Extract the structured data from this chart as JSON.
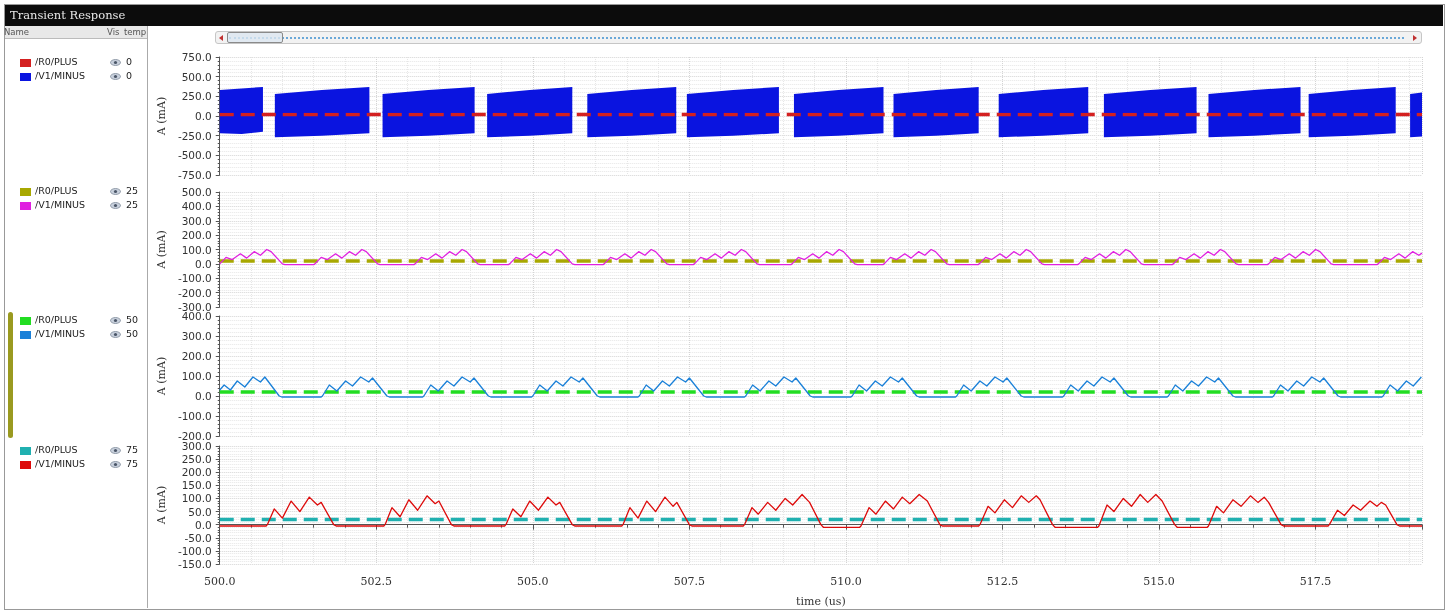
{
  "chart_data": [
    {
      "type": "line",
      "title": "Transient Response",
      "ylabel": "A (mA)",
      "legend": "left",
      "grid": true,
      "tick_labels": "y",
      "annotations": [
        "Name",
        "Vis",
        "temp",
        "0",
        "0"
      ],
      "xlim": [
        500,
        519.2
      ],
      "xticks": [
        {
          "value": 500,
          "label": null
        },
        {
          "value": 502.5,
          "label": null
        },
        {
          "value": 505,
          "label": null
        },
        {
          "value": 507.5,
          "label": null
        },
        {
          "value": 510,
          "label": null
        },
        {
          "value": 512.5,
          "label": null
        },
        {
          "value": 515,
          "label": null
        },
        {
          "value": 517.5,
          "label": null
        }
      ],
      "ylim": [
        -750,
        750
      ],
      "yticks": [
        {
          "value": -750,
          "label": "-750.0"
        },
        {
          "value": -500,
          "label": "-500.0"
        },
        {
          "value": -250,
          "label": "-250.0"
        },
        {
          "value": 0,
          "label": "0.0"
        },
        {
          "value": 250,
          "label": "250.0"
        },
        {
          "value": 500,
          "label": "500.0"
        },
        {
          "value": 750,
          "label": "750.0"
        }
      ],
      "series": [
        {
          "name": "/R0/PLUS",
          "color": "#d42020",
          "line_style": "dashed",
          "x": [
            500,
            519.2
          ],
          "values": [
            20,
            20
          ]
        },
        {
          "name": "/V1/MINUS",
          "color": "#0a14e0",
          "x": [
            500,
            500.35,
            500.69,
            500.78,
            500.88,
            501.63,
            502.39,
            502.5,
            502.6,
            503.33,
            504.07,
            504.17,
            504.27,
            504.95,
            505.63,
            505.75,
            505.87,
            506.58,
            507.29,
            507.37,
            507.46,
            508.2,
            508.93,
            509.05,
            509.17,
            509.88,
            510.6,
            510.68,
            510.76,
            511.44,
            512.12,
            512.28,
            512.44,
            513.15,
            513.87,
            514,
            514.12,
            514.86,
            515.6,
            515.7,
            515.79,
            516.52,
            517.26,
            517.33,
            517.39,
            518.08,
            518.78,
            518.9,
            519.01,
            519.2
          ],
          "values": [
            50,
            50,
            50,
            null,
            50,
            50,
            50,
            null,
            50,
            50,
            50,
            null,
            50,
            50,
            50,
            null,
            50,
            50,
            50,
            null,
            50,
            50,
            50,
            null,
            50,
            50,
            50,
            null,
            50,
            50,
            50,
            null,
            50,
            50,
            50,
            null,
            50,
            50,
            50,
            null,
            50,
            50,
            50,
            null,
            50,
            50,
            50,
            null,
            50,
            50
          ],
          "upper": [
            330,
            350,
            370,
            null,
            280,
            330,
            370,
            null,
            280,
            330,
            370,
            null,
            280,
            330,
            370,
            null,
            280,
            330,
            370,
            null,
            280,
            330,
            370,
            null,
            280,
            330,
            370,
            null,
            280,
            330,
            370,
            null,
            280,
            330,
            370,
            null,
            280,
            330,
            370,
            null,
            280,
            330,
            370,
            null,
            280,
            330,
            370,
            null,
            280,
            300
          ],
          "lower": [
            -220,
            -230,
            -200,
            null,
            -270,
            -250,
            -220,
            null,
            -270,
            -250,
            -220,
            null,
            -270,
            -250,
            -220,
            null,
            -270,
            -250,
            -220,
            null,
            -270,
            -250,
            -220,
            null,
            -270,
            -250,
            -220,
            null,
            -270,
            -250,
            -220,
            null,
            -270,
            -250,
            -220,
            null,
            -270,
            -250,
            -220,
            null,
            -270,
            -250,
            -220,
            null,
            -270,
            -250,
            -220,
            null,
            -270,
            -260
          ]
        }
      ]
    },
    {
      "type": "line",
      "ylabel": "A (mA)",
      "legend": "left",
      "grid": true,
      "tick_labels": "y",
      "annotations": [
        "25",
        "25"
      ],
      "xlim": [
        500,
        519.2
      ],
      "xticks": [
        {
          "value": 500,
          "label": null
        },
        {
          "value": 502.5,
          "label": null
        },
        {
          "value": 505,
          "label": null
        },
        {
          "value": 507.5,
          "label": null
        },
        {
          "value": 510,
          "label": null
        },
        {
          "value": 512.5,
          "label": null
        },
        {
          "value": 515,
          "label": null
        },
        {
          "value": 517.5,
          "label": null
        }
      ],
      "ylim": [
        -300,
        500
      ],
      "yticks": [
        {
          "value": -300,
          "label": "-300.0"
        },
        {
          "value": -200,
          "label": "-200.0"
        },
        {
          "value": -100,
          "label": "-100.0"
        },
        {
          "value": 0,
          "label": "0.0"
        },
        {
          "value": 100,
          "label": "100.0"
        },
        {
          "value": 200,
          "label": "200.0"
        },
        {
          "value": 300,
          "label": "300.0"
        },
        {
          "value": 400,
          "label": "400.0"
        },
        {
          "value": 500,
          "label": "500.0"
        }
      ],
      "series": [
        {
          "name": "/R0/PLUS",
          "color": "#a8a800",
          "line_style": "dashed",
          "x": [
            500,
            519.2
          ],
          "values": [
            20,
            20
          ]
        },
        {
          "name": "/V1/MINUS",
          "color": "#e020e0",
          "x": [
            500,
            500.1,
            500.2,
            500.33,
            500.43,
            500.55,
            500.65,
            500.75,
            500.82,
            501,
            501.04,
            501.5,
            501.52,
            501.62,
            501.72,
            501.85,
            501.95,
            502.07,
            502.17,
            502.27,
            502.34,
            502.52,
            502.56,
            503.1,
            503.12,
            503.22,
            503.32,
            503.45,
            503.55,
            503.67,
            503.77,
            503.87,
            503.94,
            504.12,
            504.16,
            504.61,
            504.63,
            504.73,
            504.83,
            504.96,
            505.06,
            505.18,
            505.28,
            505.38,
            505.45,
            505.63,
            505.67,
            506.12,
            506.14,
            506.24,
            506.34,
            506.47,
            506.57,
            506.69,
            506.79,
            506.89,
            506.96,
            507.14,
            507.18,
            507.56,
            507.58,
            507.68,
            507.78,
            507.91,
            508.01,
            508.13,
            508.23,
            508.33,
            508.4,
            508.58,
            508.62,
            509.12,
            509.14,
            509.24,
            509.34,
            509.47,
            509.57,
            509.69,
            509.79,
            509.89,
            509.96,
            510.14,
            510.18,
            510.59,
            510.61,
            510.71,
            510.81,
            510.94,
            511.04,
            511.16,
            511.26,
            511.36,
            511.43,
            511.61,
            511.65,
            512.11,
            512.13,
            512.23,
            512.33,
            512.46,
            512.56,
            512.68,
            512.78,
            512.88,
            512.95,
            513.13,
            513.17,
            513.7,
            513.72,
            513.82,
            513.92,
            514.05,
            514.15,
            514.27,
            514.37,
            514.47,
            514.54,
            514.72,
            514.76,
            515.21,
            515.23,
            515.33,
            515.43,
            515.56,
            515.66,
            515.78,
            515.88,
            515.98,
            516.05,
            516.23,
            516.27,
            516.73,
            516.75,
            516.85,
            516.95,
            517.08,
            517.18,
            517.3,
            517.4,
            517.5,
            517.57,
            517.75,
            517.79,
            518.48,
            518.5,
            518.6,
            518.7,
            518.83,
            518.93,
            519.05,
            519.15,
            519.2
          ],
          "values": [
            0,
            45,
            30,
            70,
            40,
            85,
            60,
            100,
            85,
            0,
            -5,
            -5,
            0,
            45,
            30,
            70,
            40,
            85,
            60,
            100,
            85,
            0,
            -5,
            -5,
            0,
            45,
            30,
            70,
            40,
            85,
            60,
            100,
            85,
            0,
            -5,
            -5,
            0,
            45,
            30,
            70,
            40,
            85,
            60,
            100,
            85,
            0,
            -5,
            -5,
            0,
            45,
            30,
            70,
            40,
            85,
            60,
            100,
            85,
            0,
            -5,
            -5,
            0,
            45,
            30,
            70,
            40,
            85,
            60,
            100,
            85,
            0,
            -5,
            -5,
            0,
            45,
            30,
            70,
            40,
            85,
            60,
            100,
            85,
            0,
            -5,
            -5,
            0,
            45,
            30,
            70,
            40,
            85,
            60,
            100,
            85,
            0,
            -5,
            -5,
            0,
            45,
            30,
            70,
            40,
            85,
            60,
            100,
            85,
            0,
            -5,
            -5,
            0,
            45,
            30,
            70,
            40,
            85,
            60,
            100,
            85,
            0,
            -5,
            -5,
            0,
            45,
            30,
            70,
            40,
            85,
            60,
            100,
            85,
            0,
            -5,
            -5,
            0,
            45,
            30,
            70,
            40,
            85,
            60,
            100,
            85,
            0,
            -5,
            -5,
            0,
            45,
            30,
            70,
            40,
            85,
            60,
            75
          ]
        }
      ]
    },
    {
      "type": "line",
      "ylabel": "A (mA)",
      "legend": "left",
      "grid": true,
      "tick_labels": "y",
      "annotations": [
        "50",
        "50"
      ],
      "xlim": [
        500,
        519.2
      ],
      "xticks": [
        {
          "value": 500,
          "label": null
        },
        {
          "value": 502.5,
          "label": null
        },
        {
          "value": 505,
          "label": null
        },
        {
          "value": 507.5,
          "label": null
        },
        {
          "value": 510,
          "label": null
        },
        {
          "value": 512.5,
          "label": null
        },
        {
          "value": 515,
          "label": null
        },
        {
          "value": 517.5,
          "label": null
        }
      ],
      "ylim": [
        -200,
        400
      ],
      "yticks": [
        {
          "value": -200,
          "label": "-200.0"
        },
        {
          "value": -100,
          "label": "-100.0"
        },
        {
          "value": 0,
          "label": "0.0"
        },
        {
          "value": 100,
          "label": "100.0"
        },
        {
          "value": 200,
          "label": "200.0"
        },
        {
          "value": 300,
          "label": "300.0"
        },
        {
          "value": 400,
          "label": "400.0"
        }
      ],
      "series": [
        {
          "name": "/R0/PLUS",
          "color": "#22dd22",
          "line_style": "dashed",
          "x": [
            500,
            519.2
          ],
          "values": [
            20,
            20
          ]
        },
        {
          "name": "/V1/MINUS",
          "color": "#1a80d8",
          "x": [
            500,
            500.07,
            500.17,
            500.28,
            500.4,
            500.53,
            500.65,
            500.72,
            500.95,
            500.99,
            501.62,
            501.64,
            501.75,
            501.87,
            502.01,
            502.12,
            502.25,
            502.38,
            502.44,
            502.67,
            502.71,
            503.24,
            503.26,
            503.37,
            503.49,
            503.63,
            503.74,
            503.87,
            504,
            504.06,
            504.29,
            504.33,
            504.98,
            505,
            505.11,
            505.23,
            505.37,
            505.48,
            505.61,
            505.74,
            505.8,
            506.03,
            506.07,
            506.68,
            506.7,
            506.81,
            506.93,
            507.07,
            507.18,
            507.31,
            507.44,
            507.5,
            507.73,
            507.77,
            508.38,
            508.4,
            508.51,
            508.63,
            508.77,
            508.88,
            509.01,
            509.14,
            509.2,
            509.43,
            509.47,
            510.08,
            510.1,
            510.21,
            510.33,
            510.47,
            510.58,
            510.71,
            510.84,
            510.9,
            511.13,
            511.17,
            511.75,
            511.77,
            511.88,
            512,
            512.14,
            512.25,
            512.38,
            512.51,
            512.57,
            512.8,
            512.84,
            513.46,
            513.48,
            513.59,
            513.71,
            513.85,
            513.96,
            514.09,
            514.22,
            514.28,
            514.51,
            514.55,
            515.13,
            515.15,
            515.26,
            515.38,
            515.52,
            515.63,
            515.76,
            515.89,
            515.95,
            516.18,
            516.22,
            516.81,
            516.83,
            516.94,
            517.06,
            517.2,
            517.31,
            517.44,
            517.57,
            517.63,
            517.86,
            517.9,
            518.56,
            518.58,
            518.69,
            518.81,
            518.95,
            519.06,
            519.19
          ],
          "values": [
            30,
            55,
            30,
            75,
            45,
            95,
            70,
            95,
            0,
            -5,
            -5,
            0,
            55,
            25,
            75,
            50,
            95,
            70,
            90,
            0,
            -5,
            -5,
            0,
            55,
            25,
            75,
            50,
            95,
            70,
            90,
            0,
            -5,
            -5,
            0,
            55,
            25,
            75,
            50,
            95,
            70,
            90,
            0,
            -5,
            -5,
            0,
            55,
            25,
            75,
            50,
            95,
            70,
            90,
            0,
            -5,
            -5,
            0,
            55,
            25,
            75,
            50,
            95,
            70,
            90,
            0,
            -5,
            -5,
            0,
            55,
            25,
            75,
            50,
            95,
            70,
            90,
            0,
            -5,
            -5,
            0,
            55,
            25,
            75,
            50,
            95,
            70,
            90,
            0,
            -5,
            -5,
            0,
            55,
            25,
            75,
            50,
            95,
            70,
            90,
            0,
            -5,
            -5,
            0,
            55,
            25,
            75,
            50,
            95,
            70,
            90,
            0,
            -5,
            -5,
            0,
            55,
            25,
            75,
            50,
            95,
            70,
            90,
            0,
            -5,
            -5,
            0,
            55,
            25,
            75,
            50,
            95
          ]
        }
      ]
    },
    {
      "type": "line",
      "xlabel": "time (us)",
      "ylabel": "A (mA)",
      "legend": "left",
      "grid": true,
      "annotations": [
        "75",
        "75"
      ],
      "xlim": [
        500,
        519.2
      ],
      "xticks": [
        {
          "value": 500,
          "label": "500.0"
        },
        502.5,
        {
          "value": 505,
          "label": "505.0"
        },
        507.5,
        {
          "value": 510,
          "label": "510.0"
        },
        512.5,
        {
          "value": 515,
          "label": "515.0"
        },
        517.5
      ],
      "ylim": [
        -150,
        300
      ],
      "yticks": [
        {
          "value": -150,
          "label": "-150.0"
        },
        {
          "value": -100,
          "label": "-100.0"
        },
        {
          "value": -50,
          "label": "-50.0"
        },
        {
          "value": 0,
          "label": "0.0"
        },
        {
          "value": 50,
          "label": "50.0"
        },
        {
          "value": 100,
          "label": "100.0"
        },
        {
          "value": 150,
          "label": "150.0"
        },
        {
          "value": 200,
          "label": "200.0"
        },
        {
          "value": 250,
          "label": "250.0"
        },
        {
          "value": 300,
          "label": "300.0"
        }
      ],
      "series": [
        {
          "name": "/R0/PLUS",
          "color": "#20b0b0",
          "line_style": "dashed",
          "x": [
            500,
            519.2
          ],
          "values": [
            20,
            20
          ]
        },
        {
          "name": "/V1/MINUS",
          "color": "#dd0a0a",
          "x": [
            500,
            500.74,
            500.76,
            500.87,
            501,
            501.14,
            501.28,
            501.43,
            501.56,
            501.62,
            501.82,
            501.86,
            502.62,
            502.64,
            502.75,
            502.88,
            503.02,
            503.16,
            503.31,
            503.44,
            503.5,
            503.7,
            503.74,
            504.55,
            504.57,
            504.68,
            504.81,
            504.95,
            505.09,
            505.24,
            505.37,
            505.43,
            505.63,
            505.67,
            506.42,
            506.44,
            506.55,
            506.68,
            506.82,
            506.96,
            507.11,
            507.24,
            507.3,
            507.5,
            507.54,
            508.36,
            508.38,
            508.5,
            508.6,
            508.75,
            508.88,
            509.03,
            509.15,
            509.3,
            509.42,
            509.6,
            509.64,
            510.22,
            510.24,
            510.37,
            510.48,
            510.63,
            510.76,
            510.9,
            511.02,
            511.17,
            511.3,
            511.5,
            511.54,
            512.12,
            512.14,
            512.27,
            512.38,
            512.53,
            512.66,
            512.8,
            512.92,
            513.04,
            513.1,
            513.3,
            513.34,
            514.02,
            514.04,
            514.17,
            514.28,
            514.43,
            514.56,
            514.7,
            514.82,
            514.95,
            515.05,
            515.25,
            515.29,
            515.77,
            515.79,
            515.92,
            516.03,
            516.18,
            516.31,
            516.46,
            516.58,
            516.68,
            516.75,
            516.95,
            516.99,
            517.7,
            517.72,
            517.85,
            517.96,
            518.1,
            518.22,
            518.37,
            518.48,
            518.55,
            518.62,
            518.8,
            518.84,
            519.2
          ],
          "values": [
            -5,
            -5,
            0,
            60,
            25,
            90,
            50,
            105,
            75,
            85,
            0,
            -5,
            -5,
            0,
            65,
            30,
            95,
            55,
            110,
            80,
            90,
            0,
            -5,
            -5,
            0,
            60,
            30,
            90,
            55,
            105,
            75,
            85,
            0,
            -5,
            -5,
            0,
            65,
            25,
            90,
            50,
            105,
            70,
            85,
            0,
            -5,
            -5,
            0,
            65,
            40,
            85,
            55,
            100,
            75,
            115,
            85,
            0,
            -10,
            -10,
            -5,
            65,
            40,
            90,
            60,
            105,
            80,
            115,
            90,
            0,
            -5,
            -5,
            0,
            70,
            45,
            95,
            65,
            110,
            85,
            110,
            95,
            0,
            -10,
            -10,
            -5,
            75,
            50,
            100,
            70,
            115,
            85,
            115,
            90,
            0,
            -10,
            -10,
            -5,
            70,
            45,
            95,
            70,
            110,
            85,
            105,
            85,
            0,
            -5,
            -5,
            0,
            55,
            35,
            75,
            55,
            90,
            70,
            85,
            75,
            0,
            -5,
            -5
          ]
        }
      ]
    }
  ]
}
